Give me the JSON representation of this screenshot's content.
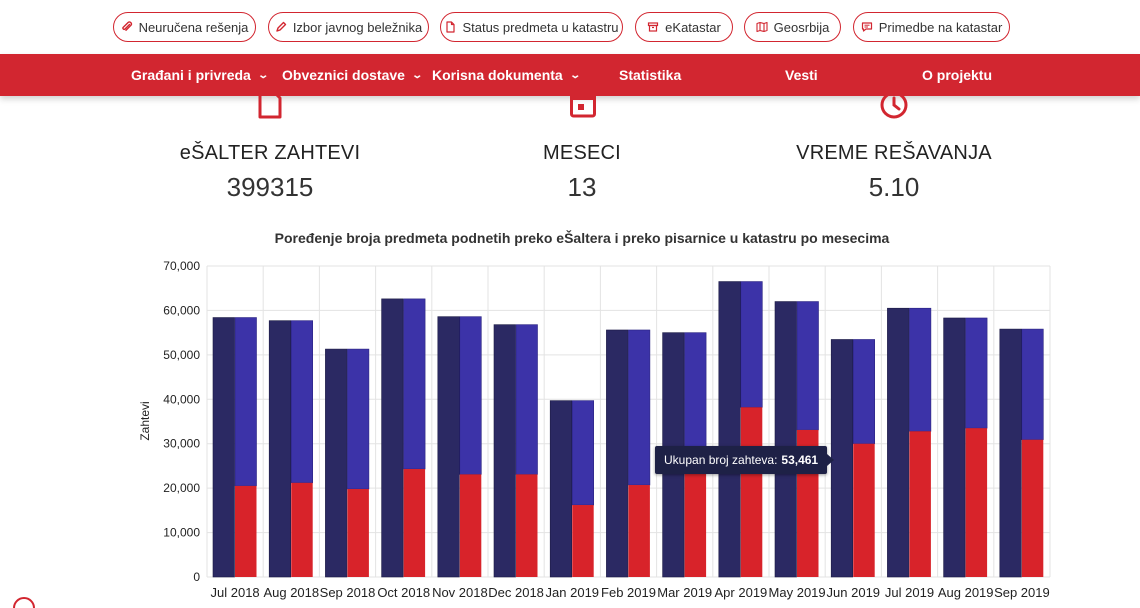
{
  "top_links": [
    {
      "label": "Neuručena rešenja",
      "icon": "paperclip-icon"
    },
    {
      "label": "Izbor javnog beležnika",
      "icon": "pencil-icon"
    },
    {
      "label": "Status predmeta u katastru",
      "icon": "document-icon"
    },
    {
      "label": "eKatastar",
      "icon": "archive-icon"
    },
    {
      "label": "Geosrbija",
      "icon": "map-icon"
    },
    {
      "label": "Primedbe na katastar",
      "icon": "comment-icon"
    }
  ],
  "nav": [
    {
      "label": "Građani i privreda",
      "has_dropdown": true
    },
    {
      "label": "Obveznici dostave",
      "has_dropdown": true
    },
    {
      "label": "Korisna dokumenta",
      "has_dropdown": true
    },
    {
      "label": "Statistika",
      "has_dropdown": false
    },
    {
      "label": "Vesti",
      "has_dropdown": false
    },
    {
      "label": "O projektu",
      "has_dropdown": false
    }
  ],
  "stats": [
    {
      "label": "eŠALTER ZAHTEVI",
      "value": "399315",
      "icon": "document-icon"
    },
    {
      "label": "MESECI",
      "value": "13",
      "icon": "calendar-icon"
    },
    {
      "label": "VREME REŠAVANJA",
      "value": "5.10",
      "icon": "clock-icon"
    }
  ],
  "tooltip": {
    "label": "Ukupan broj zahteva:",
    "value": "53,461"
  },
  "colors": {
    "brand_red": "#d22630",
    "navy": "#2b2963",
    "blue": "#3c33a8",
    "red_bar": "#d8232a"
  },
  "chart_data": {
    "type": "bar",
    "title": "Poređenje broja predmeta podnetih preko eŠaltera i preko pisarnice u katastru po mesecima",
    "ylabel": "Zahtevi",
    "xlabel": "",
    "ylim": [
      0,
      70000
    ],
    "yticks": [
      "0",
      "10,000",
      "20,000",
      "30,000",
      "40,000",
      "50,000",
      "60,000",
      "70,000"
    ],
    "grid": true,
    "categories": [
      "Jul 2018",
      "Aug 2018",
      "Sep 2018",
      "Oct 2018",
      "Nov 2018",
      "Dec 2018",
      "Jan 2019",
      "Feb 2019",
      "Mar 2019",
      "Apr 2019",
      "May 2019",
      "Jun 2019",
      "Jul 2019",
      "Aug 2019",
      "Sep 2019"
    ],
    "total": [
      58400,
      57700,
      51300,
      62600,
      58600,
      56800,
      39700,
      55600,
      55000,
      66500,
      62000,
      53461,
      60500,
      58300,
      55800
    ],
    "stacked_total": [
      58400,
      57700,
      51300,
      62600,
      58600,
      56800,
      39700,
      55600,
      55000,
      66500,
      62000,
      53461,
      60500,
      58300,
      55800
    ],
    "stacked_lower": [
      20500,
      21200,
      19800,
      24300,
      23100,
      23100,
      16200,
      20700,
      24000,
      38200,
      33100,
      30000,
      32800,
      33500,
      30900
    ],
    "highlighted_index": 11
  }
}
